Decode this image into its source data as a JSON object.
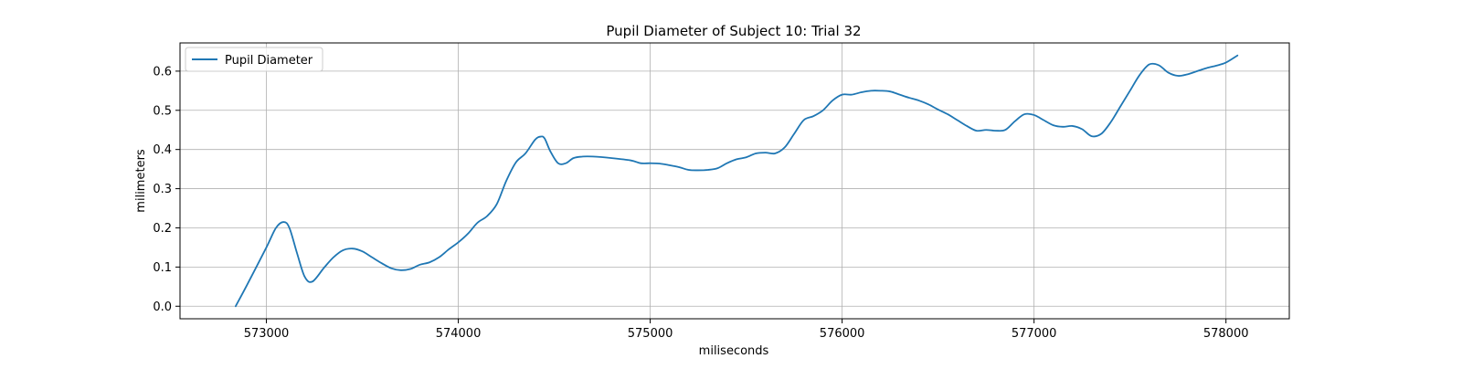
{
  "chart_data": {
    "type": "line",
    "title": "Pupil Diameter of Subject 10: Trial 32",
    "xlabel": "miliseconds",
    "ylabel": "milimeters",
    "xlim": [
      572550,
      578330
    ],
    "ylim": [
      -0.032,
      0.672
    ],
    "xticks": [
      573000,
      574000,
      575000,
      576000,
      577000,
      578000
    ],
    "yticks": [
      0.0,
      0.1,
      0.2,
      0.3,
      0.4,
      0.5,
      0.6
    ],
    "xtick_labels": [
      "573000",
      "574000",
      "575000",
      "576000",
      "577000",
      "578000"
    ],
    "ytick_labels": [
      "0.0",
      "0.1",
      "0.2",
      "0.3",
      "0.4",
      "0.5",
      "0.6"
    ],
    "grid": true,
    "legend": {
      "placement": "top-left",
      "entries": [
        "Pupil Diameter"
      ]
    },
    "series": [
      {
        "name": "Pupil Diameter",
        "color": "#1f77b4",
        "x": [
          572840,
          572900,
          573000,
          573050,
          573090,
          573120,
          573160,
          573200,
          573240,
          573300,
          573350,
          573400,
          573450,
          573500,
          573550,
          573600,
          573650,
          573700,
          573750,
          573800,
          573850,
          573900,
          573950,
          574000,
          574050,
          574100,
          574150,
          574200,
          574250,
          574300,
          574350,
          574400,
          574430,
          574450,
          574480,
          574520,
          574560,
          574600,
          574650,
          574700,
          574800,
          574900,
          574950,
          575000,
          575050,
          575100,
          575150,
          575200,
          575250,
          575300,
          575350,
          575400,
          575450,
          575500,
          575550,
          575600,
          575650,
          575700,
          575750,
          575800,
          575850,
          575900,
          575950,
          576000,
          576050,
          576100,
          576150,
          576200,
          576250,
          576300,
          576350,
          576400,
          576450,
          576500,
          576550,
          576600,
          576650,
          576700,
          576750,
          576800,
          576850,
          576900,
          576950,
          577000,
          577050,
          577100,
          577150,
          577200,
          577250,
          577300,
          577350,
          577400,
          577450,
          577500,
          577550,
          577600,
          577650,
          577700,
          577750,
          577800,
          577850,
          577900,
          577950,
          578000,
          578060
        ],
        "y": [
          0.0,
          0.055,
          0.15,
          0.2,
          0.215,
          0.2,
          0.135,
          0.075,
          0.063,
          0.098,
          0.125,
          0.143,
          0.147,
          0.14,
          0.125,
          0.11,
          0.097,
          0.092,
          0.095,
          0.106,
          0.112,
          0.125,
          0.145,
          0.163,
          0.185,
          0.213,
          0.23,
          0.26,
          0.32,
          0.367,
          0.39,
          0.425,
          0.433,
          0.428,
          0.395,
          0.365,
          0.365,
          0.378,
          0.382,
          0.382,
          0.378,
          0.372,
          0.365,
          0.365,
          0.364,
          0.36,
          0.355,
          0.348,
          0.347,
          0.348,
          0.352,
          0.365,
          0.375,
          0.38,
          0.39,
          0.392,
          0.39,
          0.405,
          0.44,
          0.475,
          0.485,
          0.5,
          0.525,
          0.54,
          0.54,
          0.546,
          0.55,
          0.55,
          0.548,
          0.54,
          0.532,
          0.525,
          0.515,
          0.502,
          0.49,
          0.475,
          0.46,
          0.448,
          0.45,
          0.448,
          0.45,
          0.472,
          0.49,
          0.488,
          0.475,
          0.462,
          0.458,
          0.46,
          0.452,
          0.434,
          0.44,
          0.47,
          0.51,
          0.55,
          0.59,
          0.617,
          0.615,
          0.596,
          0.588,
          0.592,
          0.6,
          0.608,
          0.614,
          0.622,
          0.64
        ]
      }
    ]
  }
}
